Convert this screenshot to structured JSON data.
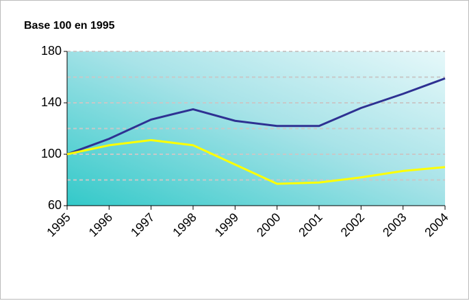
{
  "chart_data": {
    "type": "line",
    "title": "Base 100 en 1995",
    "categories": [
      "1995",
      "1996",
      "1997",
      "1998",
      "1999",
      "2000",
      "2001",
      "2002",
      "2003",
      "2004"
    ],
    "series": [
      {
        "color": "#2e3192",
        "values": [
          100,
          112,
          127,
          135,
          126,
          122,
          122,
          136,
          147,
          159
        ]
      },
      {
        "color": "#ffff00",
        "values": [
          100,
          107,
          111,
          107,
          92,
          77,
          78,
          82,
          87,
          90
        ]
      }
    ],
    "ylim": [
      60,
      180
    ],
    "yticks": [
      60,
      100,
      140,
      180
    ],
    "grid_lines": [
      80,
      100,
      120,
      140,
      160,
      180
    ],
    "grid": true
  }
}
